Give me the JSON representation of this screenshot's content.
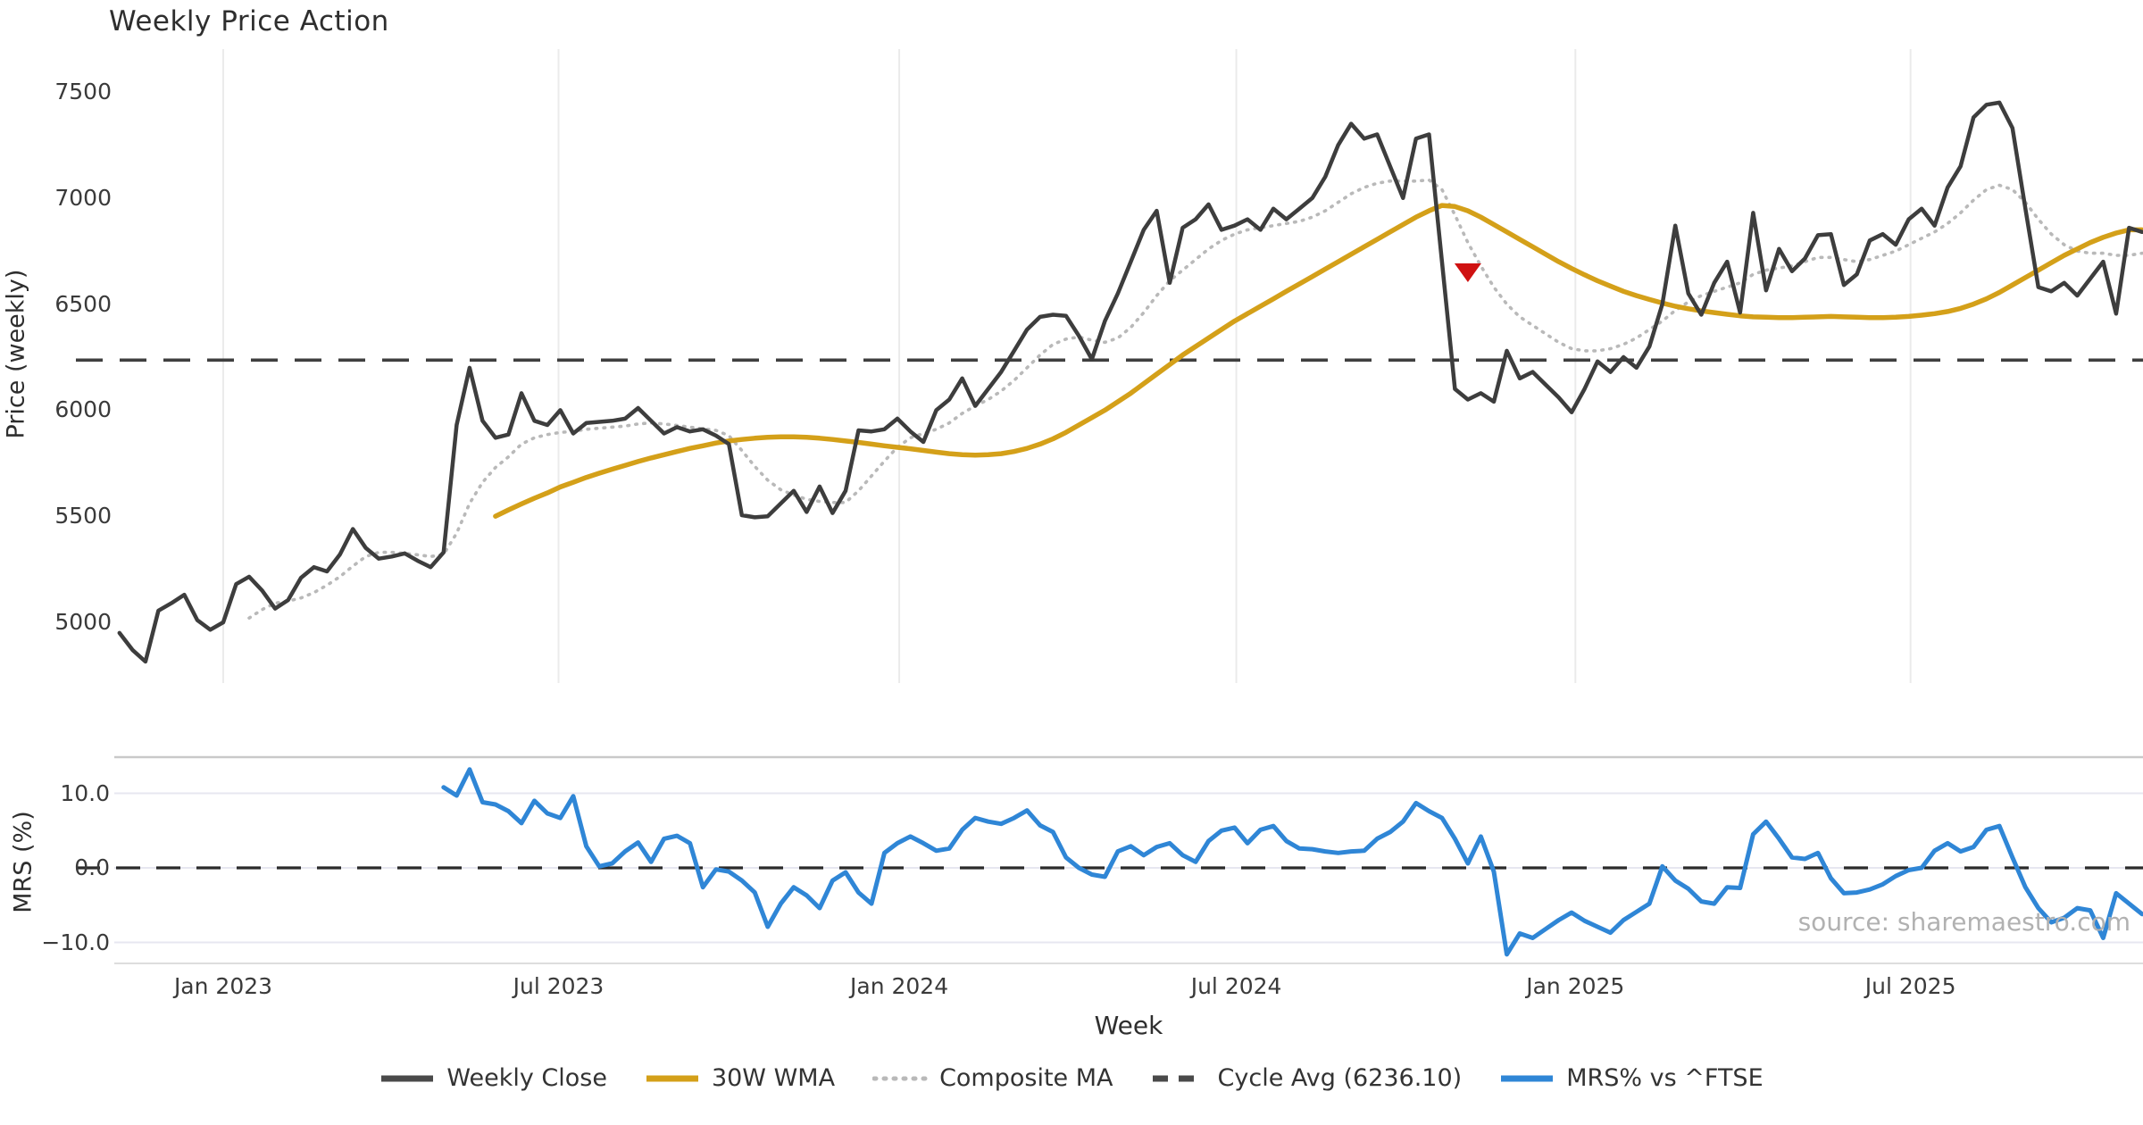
{
  "title": "Weekly Price Action",
  "source_watermark": "source: sharemaestro.com",
  "axes": {
    "price_axis_label": "Price (weekly)",
    "mrs_axis_label": "MRS (%)",
    "x_axis_label": "Week",
    "price_ticks": [
      "7500",
      "7000",
      "6500",
      "6000",
      "5500",
      "5000"
    ],
    "price_tick_values": [
      7500,
      7000,
      6500,
      6000,
      5500,
      5000
    ],
    "mrs_ticks": [
      "10.0",
      "0.0",
      "−10.0"
    ],
    "mrs_tick_values": [
      10,
      0,
      -10
    ],
    "x_tick_labels": [
      "Jan 2023",
      "Jul 2023",
      "Jan 2024",
      "Jul 2024",
      "Jan 2025",
      "Jul 2025"
    ],
    "x_tick_weeks": [
      8,
      33.86,
      60.14,
      86.14,
      112.29,
      138.14
    ]
  },
  "legend": [
    {
      "label": "Weekly Close",
      "color": "#4a4a4a",
      "style": "solid"
    },
    {
      "label": "30W WMA",
      "color": "#d4a019",
      "style": "solid"
    },
    {
      "label": "Composite MA",
      "color": "#b9b9b9",
      "style": "dotted"
    },
    {
      "label": "Cycle Avg (6236.10)",
      "color": "#4a4a4a",
      "style": "dashed"
    },
    {
      "label": "MRS% vs ^FTSE",
      "color": "#2f86d6",
      "style": "solid"
    }
  ],
  "chart_data": [
    {
      "type": "line",
      "title": "Weekly Price Action",
      "xlabel": "Week",
      "ylabel": "Price (weekly)",
      "ylim": [
        4714,
        7702
      ],
      "x_tick_labels": [
        "Jan 2023",
        "Jul 2023",
        "Jan 2024",
        "Jul 2024",
        "Jan 2025",
        "Jul 2025"
      ],
      "grid": "vertical-only",
      "cycle_avg": 6236.1,
      "sell_marker": {
        "week": 104,
        "price": 6650,
        "shape": "triangle-down",
        "color": "#cf1111"
      },
      "series": [
        {
          "name": "Weekly Close",
          "color": "#3d3d3d",
          "style": "solid",
          "width": 4.5,
          "values": [
            4950,
            4870,
            4815,
            5055,
            5090,
            5130,
            5010,
            4965,
            5000,
            5180,
            5215,
            5150,
            5065,
            5105,
            5210,
            5260,
            5240,
            5320,
            5440,
            5350,
            5300,
            5310,
            5325,
            5290,
            5260,
            5330,
            5930,
            6200,
            5950,
            5870,
            5885,
            6080,
            5950,
            5930,
            6000,
            5890,
            5940,
            5945,
            5950,
            5960,
            6010,
            5950,
            5890,
            5920,
            5900,
            5910,
            5880,
            5840,
            5505,
            5495,
            5500,
            5560,
            5620,
            5520,
            5640,
            5515,
            5620,
            5905,
            5900,
            5910,
            5960,
            5900,
            5850,
            6000,
            6050,
            6150,
            6020,
            6100,
            6180,
            6280,
            6380,
            6440,
            6450,
            6445,
            6350,
            6240,
            6420,
            6550,
            6700,
            6850,
            6940,
            6600,
            6860,
            6900,
            6970,
            6850,
            6870,
            6900,
            6850,
            6950,
            6900,
            6950,
            7000,
            7100,
            7250,
            7350,
            7280,
            7300,
            7150,
            7000,
            7280,
            7300,
            6700,
            6100,
            6050,
            6080,
            6040,
            6280,
            6150,
            6180,
            6120,
            6060,
            5990,
            6100,
            6230,
            6180,
            6250,
            6200,
            6300,
            6500,
            6870,
            6550,
            6450,
            6600,
            6700,
            6460,
            6930,
            6565,
            6760,
            6655,
            6715,
            6825,
            6830,
            6590,
            6640,
            6800,
            6830,
            6780,
            6900,
            6950,
            6870,
            7050,
            7150,
            7380,
            7440,
            7450,
            7330,
            6950,
            6580,
            6560,
            6600,
            6540,
            6620,
            6700,
            6455,
            6860,
            6840
          ]
        },
        {
          "name": "30W WMA",
          "color": "#d4a019",
          "style": "solid",
          "width": 5.5,
          "values": [
            null,
            null,
            null,
            null,
            null,
            null,
            null,
            null,
            null,
            null,
            null,
            null,
            null,
            null,
            null,
            null,
            null,
            null,
            null,
            null,
            null,
            null,
            null,
            null,
            null,
            null,
            null,
            null,
            null,
            5500,
            5530,
            5558,
            5585,
            5610,
            5638,
            5660,
            5683,
            5703,
            5722,
            5740,
            5758,
            5775,
            5790,
            5805,
            5820,
            5832,
            5845,
            5855,
            5862,
            5868,
            5872,
            5874,
            5874,
            5872,
            5868,
            5862,
            5855,
            5848,
            5840,
            5832,
            5825,
            5818,
            5810,
            5802,
            5795,
            5790,
            5788,
            5790,
            5795,
            5805,
            5820,
            5840,
            5865,
            5895,
            5930,
            5965,
            6000,
            6040,
            6080,
            6125,
            6170,
            6215,
            6260,
            6300,
            6340,
            6380,
            6420,
            6455,
            6490,
            6525,
            6560,
            6595,
            6630,
            6665,
            6700,
            6735,
            6770,
            6805,
            6840,
            6875,
            6910,
            6940,
            6965,
            6960,
            6940,
            6910,
            6875,
            6840,
            6805,
            6770,
            6735,
            6700,
            6668,
            6638,
            6610,
            6585,
            6560,
            6540,
            6522,
            6505,
            6490,
            6478,
            6468,
            6460,
            6452,
            6445,
            6440,
            6438,
            6436,
            6436,
            6438,
            6440,
            6442,
            6440,
            6438,
            6436,
            6436,
            6438,
            6442,
            6448,
            6455,
            6465,
            6480,
            6500,
            6525,
            6555,
            6590,
            6625,
            6660,
            6695,
            6730,
            6760,
            6790,
            6815,
            6835,
            6850,
            6850
          ]
        },
        {
          "name": "Composite MA",
          "color": "#b9b9b9",
          "style": "dotted",
          "width": 3.6,
          "values": [
            null,
            null,
            null,
            null,
            null,
            null,
            null,
            null,
            null,
            null,
            5020,
            5060,
            5090,
            5100,
            5115,
            5140,
            5175,
            5215,
            5265,
            5310,
            5330,
            5330,
            5325,
            5318,
            5310,
            5320,
            5420,
            5560,
            5660,
            5730,
            5780,
            5840,
            5870,
            5885,
            5895,
            5900,
            5910,
            5915,
            5920,
            5925,
            5935,
            5940,
            5935,
            5928,
            5920,
            5912,
            5905,
            5880,
            5810,
            5735,
            5670,
            5625,
            5600,
            5580,
            5570,
            5565,
            5565,
            5620,
            5690,
            5760,
            5825,
            5870,
            5890,
            5910,
            5940,
            5985,
            6020,
            6050,
            6090,
            6140,
            6200,
            6260,
            6310,
            6335,
            6345,
            6330,
            6320,
            6340,
            6390,
            6460,
            6540,
            6610,
            6660,
            6710,
            6760,
            6800,
            6830,
            6850,
            6860,
            6870,
            6880,
            6890,
            6910,
            6940,
            6980,
            7020,
            7050,
            7070,
            7080,
            7080,
            7080,
            7085,
            7040,
            6920,
            6790,
            6680,
            6580,
            6500,
            6440,
            6400,
            6360,
            6320,
            6290,
            6280,
            6280,
            6290,
            6310,
            6340,
            6380,
            6420,
            6470,
            6510,
            6540,
            6560,
            6580,
            6600,
            6640,
            6660,
            6670,
            6680,
            6700,
            6720,
            6720,
            6710,
            6700,
            6710,
            6730,
            6750,
            6780,
            6810,
            6840,
            6880,
            6930,
            6990,
            7040,
            7060,
            7040,
            6980,
            6900,
            6830,
            6780,
            6750,
            6740,
            6740,
            6730,
            6730,
            6740
          ]
        }
      ]
    },
    {
      "type": "line",
      "xlabel": "Week",
      "ylabel": "MRS (%)",
      "ylim": [
        -12.8,
        14.9
      ],
      "zero_line": 0.0,
      "series": [
        {
          "name": "MRS% vs ^FTSE",
          "color": "#2f86d6",
          "style": "solid",
          "width": 5,
          "values": [
            null,
            null,
            null,
            null,
            null,
            null,
            null,
            null,
            null,
            null,
            null,
            null,
            null,
            null,
            null,
            null,
            null,
            null,
            null,
            null,
            null,
            null,
            null,
            null,
            null,
            10.8,
            9.7,
            13.2,
            8.8,
            8.5,
            7.6,
            6.0,
            9.0,
            7.3,
            6.7,
            9.6,
            2.9,
            0.2,
            0.6,
            2.2,
            3.4,
            0.8,
            3.9,
            4.3,
            3.3,
            -2.6,
            -0.2,
            -0.5,
            -1.7,
            -3.3,
            -7.9,
            -4.8,
            -2.6,
            -3.7,
            -5.4,
            -1.7,
            -0.6,
            -3.3,
            -4.8,
            2.0,
            3.3,
            4.2,
            3.3,
            2.3,
            2.6,
            5.1,
            6.7,
            6.2,
            5.9,
            6.7,
            7.7,
            5.7,
            4.8,
            1.4,
            0.0,
            -0.9,
            -1.2,
            2.2,
            2.9,
            1.7,
            2.8,
            3.3,
            1.7,
            0.8,
            3.6,
            5.0,
            5.4,
            3.3,
            5.1,
            5.6,
            3.6,
            2.6,
            2.5,
            2.2,
            2.0,
            2.2,
            2.3,
            3.9,
            4.8,
            6.2,
            8.7,
            7.6,
            6.7,
            3.9,
            0.6,
            4.2,
            -0.5,
            -11.6,
            -8.8,
            -9.4,
            -8.2,
            -7.0,
            -6.0,
            -7.1,
            -7.9,
            -8.7,
            -7.0,
            -5.9,
            -4.8,
            0.2,
            -1.7,
            -2.8,
            -4.5,
            -4.8,
            -2.6,
            -2.7,
            4.5,
            6.2,
            3.9,
            1.4,
            1.2,
            2.0,
            -1.4,
            -3.4,
            -3.3,
            -2.9,
            -2.2,
            -1.1,
            -0.3,
            0.0,
            2.3,
            3.3,
            2.2,
            2.8,
            5.1,
            5.6,
            1.4,
            -2.6,
            -5.4,
            -7.3,
            -6.7,
            -5.4,
            -5.7,
            -9.4,
            -3.4,
            -4.8,
            -6.2
          ]
        }
      ]
    }
  ]
}
